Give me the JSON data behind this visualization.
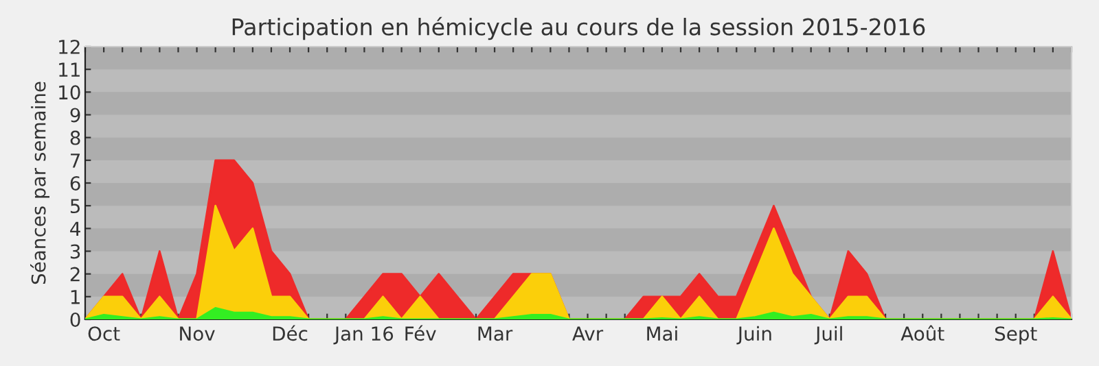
{
  "chart_data": {
    "type": "area",
    "title": "Participation en hémicycle au cours de la session 2015-2016",
    "ylabel": "Séances par semaine",
    "categories": [
      null,
      "Oct",
      null,
      null,
      null,
      null,
      "Nov",
      null,
      null,
      null,
      null,
      "Déc",
      null,
      null,
      null,
      "Jan 16",
      null,
      null,
      "Fév",
      null,
      null,
      null,
      "Mar",
      null,
      null,
      null,
      null,
      "Avr",
      null,
      null,
      null,
      "Mai",
      null,
      null,
      null,
      null,
      "Juin",
      null,
      null,
      null,
      "Juil",
      null,
      null,
      null,
      null,
      "Août",
      null,
      null,
      null,
      null,
      "Sept",
      null,
      null,
      null
    ],
    "series": [
      {
        "color": "#ee2a2a",
        "values": [
          0,
          1,
          2,
          0,
          3,
          0,
          2,
          7,
          7,
          6,
          3,
          2,
          0,
          0,
          0,
          1,
          2,
          2,
          1,
          2,
          1,
          0,
          1,
          2,
          2,
          2,
          0,
          0,
          0,
          0,
          1,
          1,
          1,
          2,
          1,
          1,
          3,
          5,
          3,
          1,
          0,
          3,
          2,
          0,
          0,
          0,
          0,
          0,
          0,
          0,
          0,
          0,
          3,
          0
        ]
      },
      {
        "color": "#fbcf0a",
        "values": [
          0,
          1,
          1,
          0,
          1,
          0,
          0,
          5,
          3,
          4,
          1,
          1,
          0,
          0,
          0,
          0,
          1,
          0,
          1,
          0,
          0,
          0,
          0,
          1,
          2,
          2,
          0,
          0,
          0,
          0,
          0,
          1,
          0,
          1,
          0,
          0,
          2,
          4,
          2,
          1,
          0,
          1,
          1,
          0,
          0,
          0,
          0,
          0,
          0,
          0,
          0,
          0,
          1,
          0
        ]
      },
      {
        "color": "#33ee22",
        "values": [
          0,
          0.2,
          0.1,
          0,
          0.1,
          0,
          0,
          0.5,
          0.3,
          0.3,
          0.1,
          0.1,
          0,
          0,
          0,
          0,
          0.1,
          0,
          0,
          0,
          0,
          0,
          0,
          0.1,
          0.2,
          0.2,
          0,
          0,
          0,
          0,
          0,
          0.05,
          0,
          0.1,
          0,
          0,
          0.1,
          0.3,
          0.1,
          0.2,
          0,
          0.1,
          0.1,
          0,
          0,
          0,
          0,
          0,
          0,
          0,
          0,
          0,
          0.05,
          0
        ]
      }
    ],
    "ylim": [
      0,
      12
    ],
    "yticks": [
      0,
      1,
      2,
      3,
      4,
      5,
      6,
      7,
      8,
      9,
      10,
      11,
      12
    ],
    "bands": [
      {
        "axis": "y",
        "from": 1,
        "to": 2,
        "color": "#adadad"
      },
      {
        "axis": "y",
        "from": 3,
        "to": 4,
        "color": "#adadad"
      },
      {
        "axis": "y",
        "from": 5,
        "to": 6,
        "color": "#adadad"
      },
      {
        "axis": "y",
        "from": 7,
        "to": 8,
        "color": "#adadad"
      },
      {
        "axis": "y",
        "from": 9,
        "to": 10,
        "color": "#adadad"
      },
      {
        "axis": "y",
        "from": 11,
        "to": 12,
        "color": "#adadad"
      }
    ]
  }
}
